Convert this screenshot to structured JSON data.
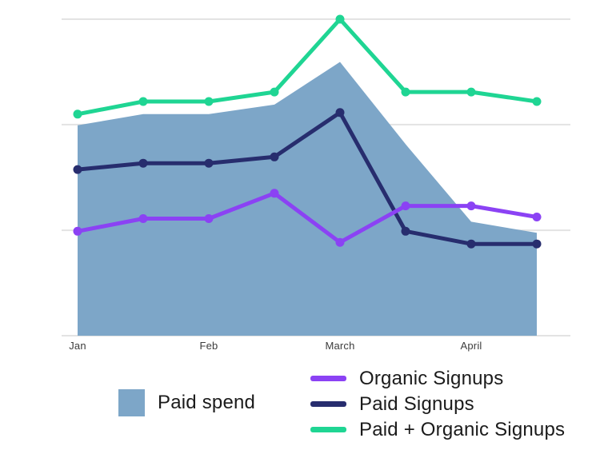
{
  "chart": {
    "grid_color": "#e3e3e3",
    "axis_text_color": "#3c3c3c",
    "legend_text_color": "#1b1b1b"
  },
  "chart_data": {
    "type": "area+line",
    "categories": [
      "Jan",
      "",
      "Feb",
      "",
      "March",
      "",
      "April",
      ""
    ],
    "x_tick_labels": [
      "Jan",
      "Feb",
      "March",
      "April"
    ],
    "ylim": [
      0,
      110
    ],
    "y_axis_labels_visible": false,
    "grid": "horizontal",
    "gridline_values": [
      0,
      33.3,
      66.7,
      100
    ],
    "legend_position": "bottom",
    "area_series": {
      "name": "Paid spend",
      "color": "#7da6c8",
      "values": [
        66.5,
        70,
        70,
        73,
        86.5,
        60.5,
        36,
        32.5
      ]
    },
    "line_series": [
      {
        "name": "Paid Signups",
        "color": "#272d6e",
        "values": [
          52.5,
          54.5,
          54.5,
          56.5,
          70.5,
          33,
          29,
          29
        ]
      },
      {
        "name": "Organic Signups",
        "color": "#8b42f4",
        "values": [
          33,
          37,
          37,
          45,
          29.5,
          41,
          41,
          37.5
        ]
      },
      {
        "name": "Paid + Organic Signups",
        "color": "#1fd593",
        "values": [
          70,
          74,
          74,
          77,
          100,
          77,
          77,
          74
        ]
      }
    ]
  },
  "legend": {
    "paid_spend_label": "Paid spend",
    "organic_label": "Organic Signups",
    "paid_label": "Paid Signups",
    "total_label": "Paid + Organic Signups"
  }
}
